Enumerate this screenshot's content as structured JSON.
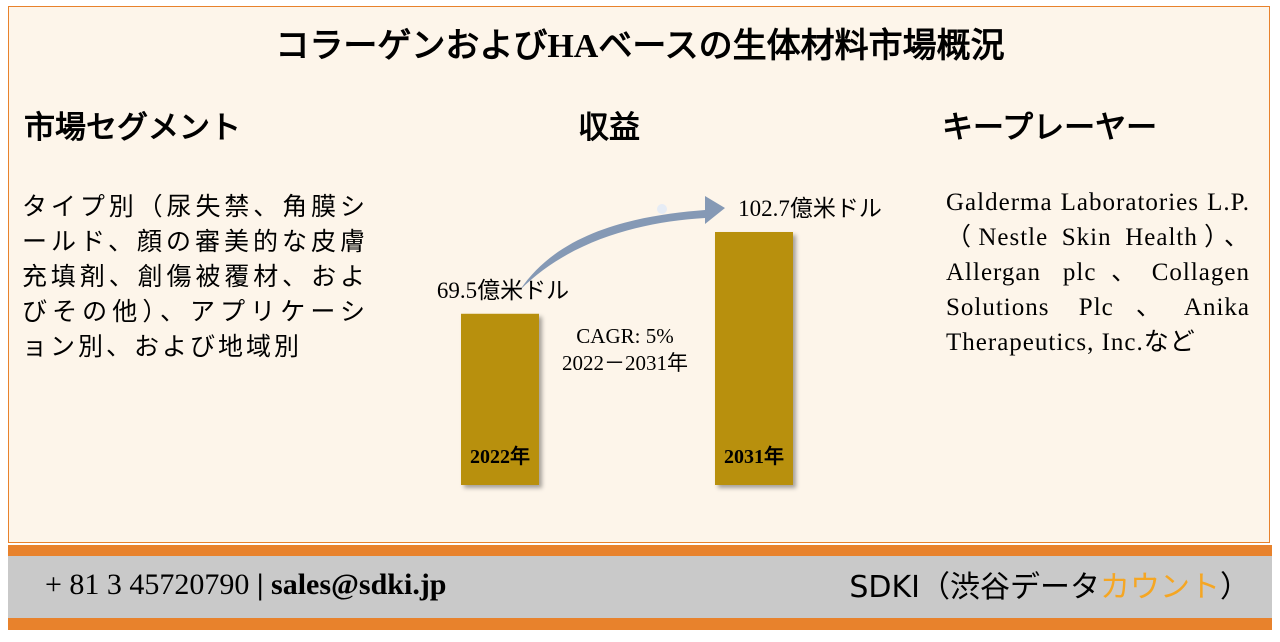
{
  "header": {
    "title": "コラーゲンおよびHAベースの生体材料市場概況"
  },
  "segments": {
    "heading": "市場セグメント",
    "text": "タイプ別（尿失禁、角膜シールド、顔の審美的な皮膚充填剤、創傷被覆材、およびその他）、アプリケーション別、および地域別"
  },
  "revenue": {
    "heading": "収益",
    "chart_data": {
      "type": "bar",
      "categories": [
        "2022年",
        "2031年"
      ],
      "values": [
        69.5,
        102.7
      ],
      "value_labels": [
        "69.5億米ドル",
        "102.7億米ドル"
      ],
      "color": "#b8900a",
      "annotation": [
        "CAGR: 5%",
        "2022－2031年"
      ]
    }
  },
  "players": {
    "heading": "キープレーヤー",
    "text": "Galderma Laboratories L.P.（Nestle Skin Health）、Allergan plc、Collagen Solutions Plc、Anika Therapeutics, Inc.など"
  },
  "footer": {
    "phone": "+ 81 3 45720790",
    "separator": "|",
    "email": "sales@sdki.jp",
    "brand": [
      "SDKI（渋谷データ",
      "カウント",
      "）"
    ]
  }
}
